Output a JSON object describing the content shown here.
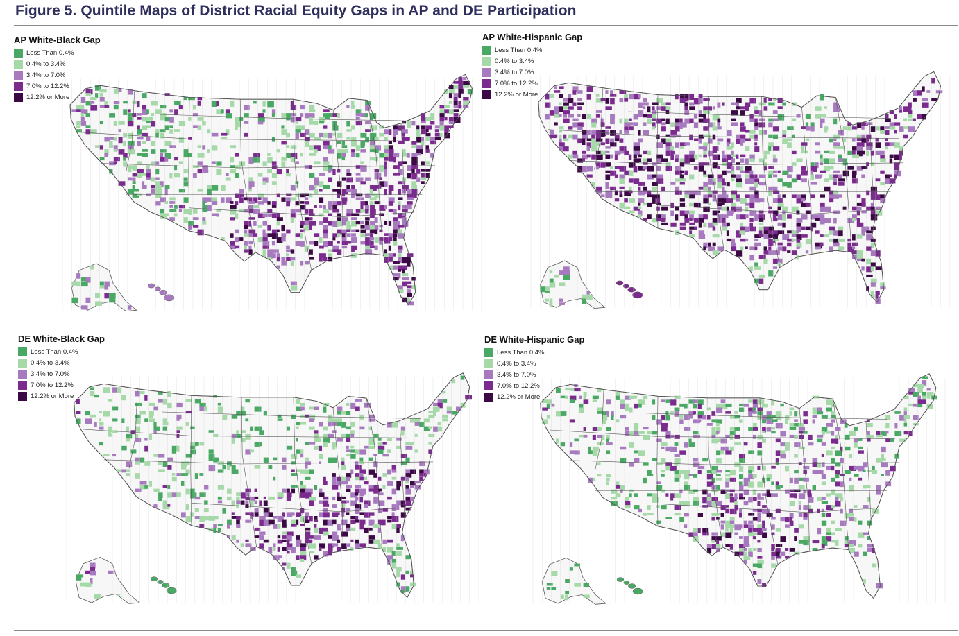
{
  "figure": {
    "title": "Figure 5. Quintile Maps of District Racial Equity Gaps in AP and DE Participation"
  },
  "legend": {
    "categories": [
      {
        "label": "Less Than 0.4%",
        "color": "#4aa865"
      },
      {
        "label": "0.4% to 3.4%",
        "color": "#a6d9a8"
      },
      {
        "label": "3.4% to 7.0%",
        "color": "#a779bf"
      },
      {
        "label": "7.0% to 12.2%",
        "color": "#7b2a8e"
      },
      {
        "label": "12.2% or More",
        "color": "#3b0a45"
      }
    ]
  },
  "colors": {
    "land": "#f7f7f7",
    "district_border": "#c9c9c9",
    "state_border": "#555555",
    "title": "#2e2e5c"
  },
  "panels": [
    {
      "id": "ap-white-black",
      "title": "AP White-Black Gap",
      "emphasis": {
        "southeast": 4,
        "south": 3,
        "great_plains": 1,
        "west": 2,
        "northeast": 4,
        "midwest": 2,
        "southwest": 2,
        "florida": 4,
        "hawaii": 2,
        "alaska": 1
      }
    },
    {
      "id": "ap-white-hispanic",
      "title": "AP White-Hispanic Gap",
      "emphasis": {
        "southeast": 3,
        "south": 3,
        "great_plains": 3,
        "west": 3,
        "northeast": 3,
        "midwest": 2,
        "southwest": 3,
        "florida": 4,
        "hawaii": 3,
        "alaska": 1
      }
    },
    {
      "id": "de-white-black",
      "title": "DE White-Black Gap",
      "emphasis": {
        "southeast": 3,
        "south": 3,
        "great_plains": 0,
        "west": 1,
        "northeast": 1,
        "midwest": 2,
        "southwest": 1,
        "florida": 2,
        "hawaii": 0,
        "alaska": 1
      }
    },
    {
      "id": "de-white-hispanic",
      "title": "DE White-Hispanic Gap",
      "emphasis": {
        "southeast": 2,
        "south": 3,
        "great_plains": 2,
        "west": 1,
        "northeast": 2,
        "midwest": 2,
        "southwest": 1,
        "florida": 1,
        "hawaii": 0,
        "alaska": 0
      }
    }
  ]
}
